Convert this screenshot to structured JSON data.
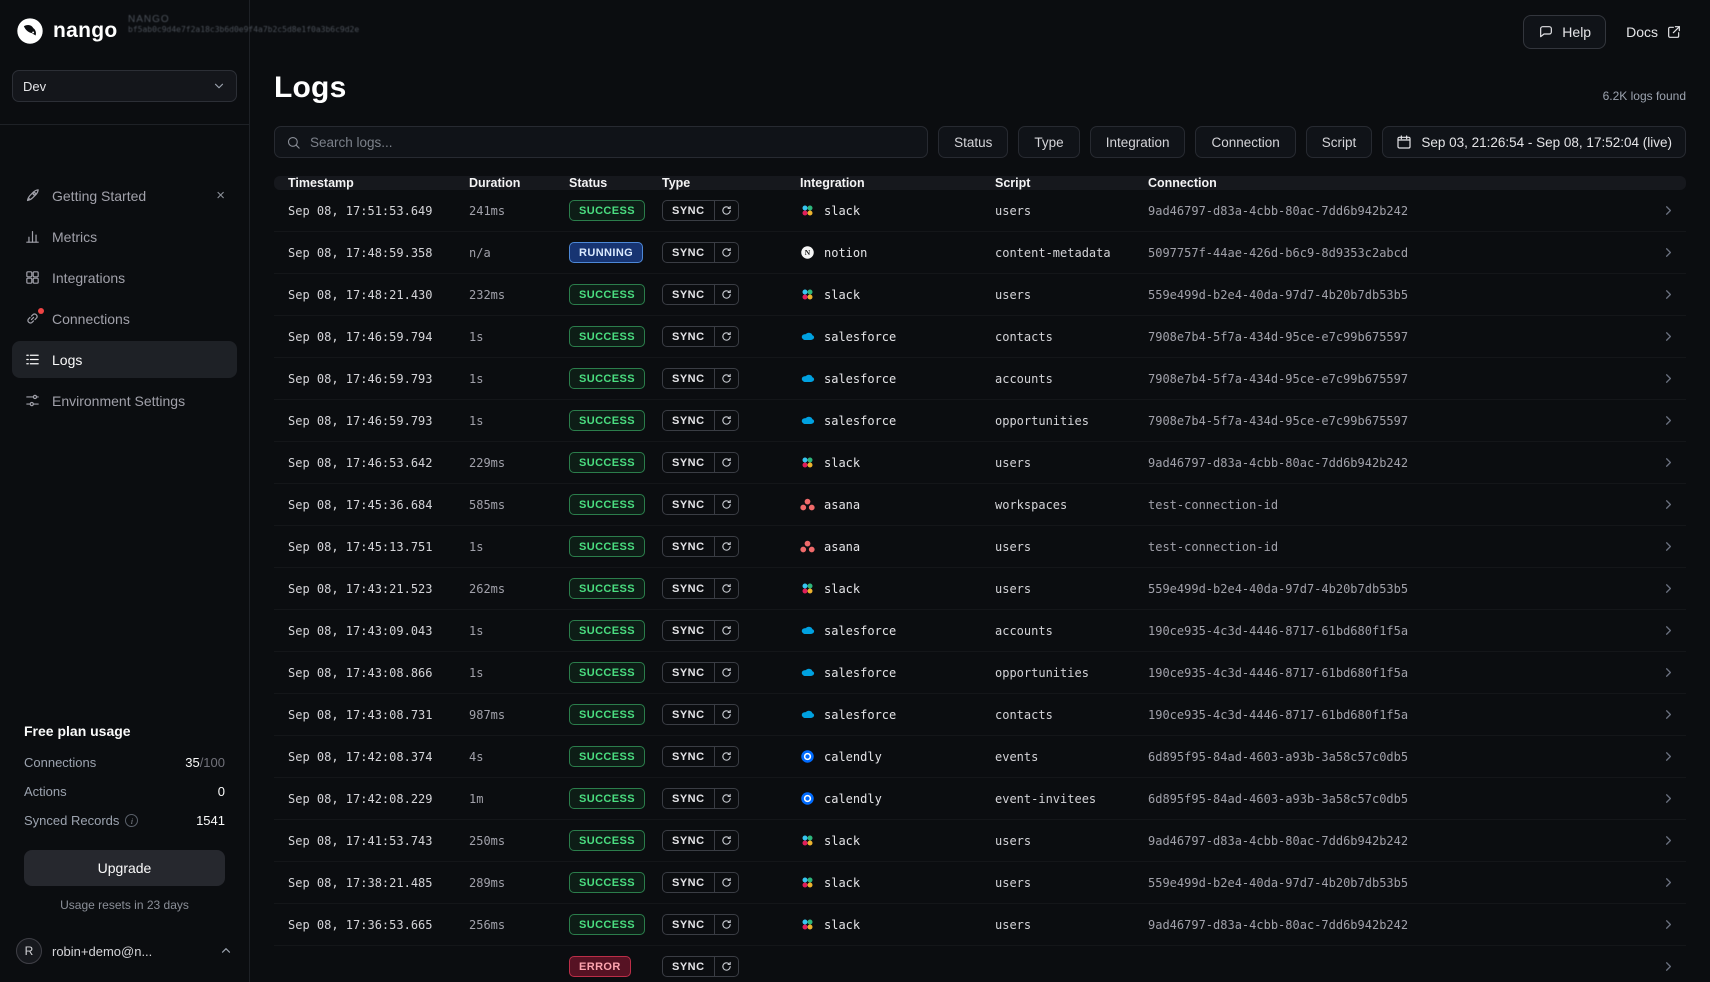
{
  "brand": {
    "name": "nango"
  },
  "debug_overlay": {
    "line1": "NANGO",
    "line2": "bf5ab0c9d4e7f2a18c3b6d0e9f4a7b2c5d8e1f0a3b6c9d2e"
  },
  "topbar": {
    "help_label": "Help",
    "docs_label": "Docs"
  },
  "sidebar": {
    "env_label": "Dev",
    "items": [
      {
        "label": "Getting Started",
        "icon": "rocket-icon",
        "closable": true
      },
      {
        "label": "Metrics",
        "icon": "metrics-icon"
      },
      {
        "label": "Integrations",
        "icon": "integrations-icon"
      },
      {
        "label": "Connections",
        "icon": "connections-icon",
        "notification": true
      },
      {
        "label": "Logs",
        "icon": "logs-icon",
        "active": true
      },
      {
        "label": "Environment Settings",
        "icon": "settings-icon"
      }
    ],
    "usage": {
      "title": "Free plan usage",
      "rows": [
        {
          "label": "Connections",
          "value": "35",
          "limit": "/100"
        },
        {
          "label": "Actions",
          "value": "0"
        },
        {
          "label": "Synced Records",
          "info": true,
          "value": "1541"
        }
      ],
      "upgrade_label": "Upgrade",
      "reset_note": "Usage resets in 23 days"
    },
    "account": {
      "initial": "R",
      "email": "robin+demo@n..."
    }
  },
  "logs": {
    "title": "Logs",
    "count_label": "6.2K logs found",
    "search_placeholder": "Search logs...",
    "filters": [
      "Status",
      "Type",
      "Integration",
      "Connection",
      "Script"
    ],
    "date_range": "Sep 03, 21:26:54 - Sep 08, 17:52:04 (live)",
    "columns": [
      "Timestamp",
      "Duration",
      "Status",
      "Type",
      "Integration",
      "Script",
      "Connection"
    ],
    "rows": [
      {
        "timestamp": "Sep 08, 17:51:53.649",
        "duration": "241ms",
        "status": "SUCCESS",
        "type": "SYNC",
        "integration": "slack",
        "script": "users",
        "connection": "9ad46797-d83a-4cbb-80ac-7dd6b942b242"
      },
      {
        "timestamp": "Sep 08, 17:48:59.358",
        "duration": "n/a",
        "status": "RUNNING",
        "type": "SYNC",
        "integration": "notion",
        "script": "content-metadata",
        "connection": "5097757f-44ae-426d-b6c9-8d9353c2abcd"
      },
      {
        "timestamp": "Sep 08, 17:48:21.430",
        "duration": "232ms",
        "status": "SUCCESS",
        "type": "SYNC",
        "integration": "slack",
        "script": "users",
        "connection": "559e499d-b2e4-40da-97d7-4b20b7db53b5"
      },
      {
        "timestamp": "Sep 08, 17:46:59.794",
        "duration": "1s",
        "status": "SUCCESS",
        "type": "SYNC",
        "integration": "salesforce",
        "script": "contacts",
        "connection": "7908e7b4-5f7a-434d-95ce-e7c99b675597"
      },
      {
        "timestamp": "Sep 08, 17:46:59.793",
        "duration": "1s",
        "status": "SUCCESS",
        "type": "SYNC",
        "integration": "salesforce",
        "script": "accounts",
        "connection": "7908e7b4-5f7a-434d-95ce-e7c99b675597"
      },
      {
        "timestamp": "Sep 08, 17:46:59.793",
        "duration": "1s",
        "status": "SUCCESS",
        "type": "SYNC",
        "integration": "salesforce",
        "script": "opportunities",
        "connection": "7908e7b4-5f7a-434d-95ce-e7c99b675597"
      },
      {
        "timestamp": "Sep 08, 17:46:53.642",
        "duration": "229ms",
        "status": "SUCCESS",
        "type": "SYNC",
        "integration": "slack",
        "script": "users",
        "connection": "9ad46797-d83a-4cbb-80ac-7dd6b942b242"
      },
      {
        "timestamp": "Sep 08, 17:45:36.684",
        "duration": "585ms",
        "status": "SUCCESS",
        "type": "SYNC",
        "integration": "asana",
        "script": "workspaces",
        "connection": "test-connection-id"
      },
      {
        "timestamp": "Sep 08, 17:45:13.751",
        "duration": "1s",
        "status": "SUCCESS",
        "type": "SYNC",
        "integration": "asana",
        "script": "users",
        "connection": "test-connection-id"
      },
      {
        "timestamp": "Sep 08, 17:43:21.523",
        "duration": "262ms",
        "status": "SUCCESS",
        "type": "SYNC",
        "integration": "slack",
        "script": "users",
        "connection": "559e499d-b2e4-40da-97d7-4b20b7db53b5"
      },
      {
        "timestamp": "Sep 08, 17:43:09.043",
        "duration": "1s",
        "status": "SUCCESS",
        "type": "SYNC",
        "integration": "salesforce",
        "script": "accounts",
        "connection": "190ce935-4c3d-4446-8717-61bd680f1f5a"
      },
      {
        "timestamp": "Sep 08, 17:43:08.866",
        "duration": "1s",
        "status": "SUCCESS",
        "type": "SYNC",
        "integration": "salesforce",
        "script": "opportunities",
        "connection": "190ce935-4c3d-4446-8717-61bd680f1f5a"
      },
      {
        "timestamp": "Sep 08, 17:43:08.731",
        "duration": "987ms",
        "status": "SUCCESS",
        "type": "SYNC",
        "integration": "salesforce",
        "script": "contacts",
        "connection": "190ce935-4c3d-4446-8717-61bd680f1f5a"
      },
      {
        "timestamp": "Sep 08, 17:42:08.374",
        "duration": "4s",
        "status": "SUCCESS",
        "type": "SYNC",
        "integration": "calendly",
        "script": "events",
        "connection": "6d895f95-84ad-4603-a93b-3a58c57c0db5"
      },
      {
        "timestamp": "Sep 08, 17:42:08.229",
        "duration": "1m",
        "status": "SUCCESS",
        "type": "SYNC",
        "integration": "calendly",
        "script": "event-invitees",
        "connection": "6d895f95-84ad-4603-a93b-3a58c57c0db5"
      },
      {
        "timestamp": "Sep 08, 17:41:53.743",
        "duration": "250ms",
        "status": "SUCCESS",
        "type": "SYNC",
        "integration": "slack",
        "script": "users",
        "connection": "9ad46797-d83a-4cbb-80ac-7dd6b942b242"
      },
      {
        "timestamp": "Sep 08, 17:38:21.485",
        "duration": "289ms",
        "status": "SUCCESS",
        "type": "SYNC",
        "integration": "slack",
        "script": "users",
        "connection": "559e499d-b2e4-40da-97d7-4b20b7db53b5"
      },
      {
        "timestamp": "Sep 08, 17:36:53.665",
        "duration": "256ms",
        "status": "SUCCESS",
        "type": "SYNC",
        "integration": "slack",
        "script": "users",
        "connection": "9ad46797-d83a-4cbb-80ac-7dd6b942b242"
      },
      {
        "timestamp": "",
        "duration": "",
        "status": "ERROR",
        "type": "SYNC",
        "integration": "",
        "script": "",
        "connection": "",
        "partial": true
      }
    ]
  },
  "colors": {
    "success": "#4ade80",
    "running": "#3b82f6",
    "error": "#ef4444",
    "notification": "#ef4444"
  }
}
